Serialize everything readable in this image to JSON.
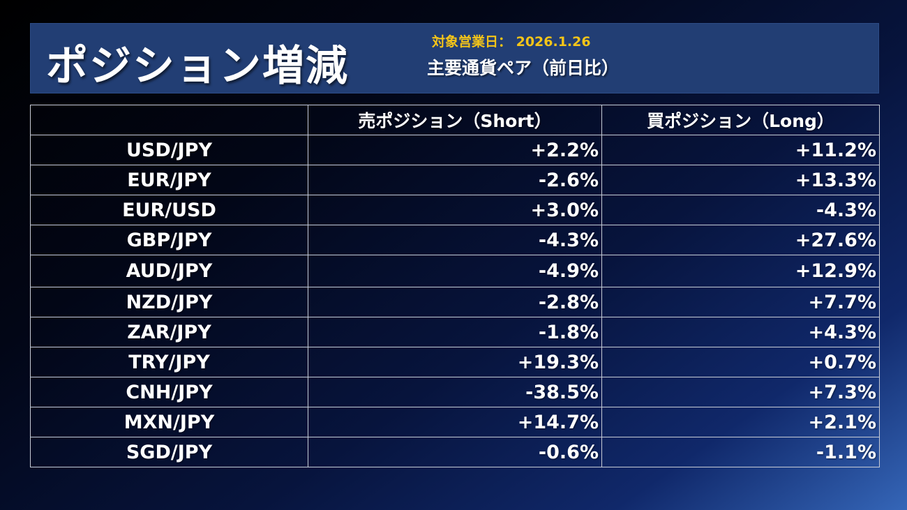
{
  "header": {
    "title": "ポジション増減",
    "date_label": "対象営業日： 2026.1.26",
    "subtitle": "主要通貨ペア（前日比）"
  },
  "table": {
    "columns": [
      "",
      "売ポジション（Short）",
      "買ポジション（Long）"
    ],
    "rows": [
      {
        "pair": "USD/JPY",
        "short": "+2.2%",
        "long": "+11.2%"
      },
      {
        "pair": "EUR/JPY",
        "short": "-2.6%",
        "long": "+13.3%"
      },
      {
        "pair": "EUR/USD",
        "short": "+3.0%",
        "long": "-4.3%"
      },
      {
        "pair": "GBP/JPY",
        "short": "-4.3%",
        "long": "+27.6%"
      },
      {
        "pair": "AUD/JPY",
        "short": "-4.9%",
        "long": "+12.9%"
      },
      {
        "pair": "NZD/JPY",
        "short": "-2.8%",
        "long": "+7.7%"
      },
      {
        "pair": "ZAR/JPY",
        "short": "-1.8%",
        "long": "+4.3%"
      },
      {
        "pair": "TRY/JPY",
        "short": "+19.3%",
        "long": "+0.7%"
      },
      {
        "pair": "CNH/JPY",
        "short": "-38.5%",
        "long": "+7.3%"
      },
      {
        "pair": "MXN/JPY",
        "short": "+14.7%",
        "long": "+2.1%"
      },
      {
        "pair": "SGD/JPY",
        "short": "-0.6%",
        "long": "-1.1%"
      }
    ]
  },
  "colors": {
    "header_bg": "#223e74",
    "date_text": "#f5c518",
    "text": "#ffffff",
    "grid": "#c8ccd6"
  }
}
